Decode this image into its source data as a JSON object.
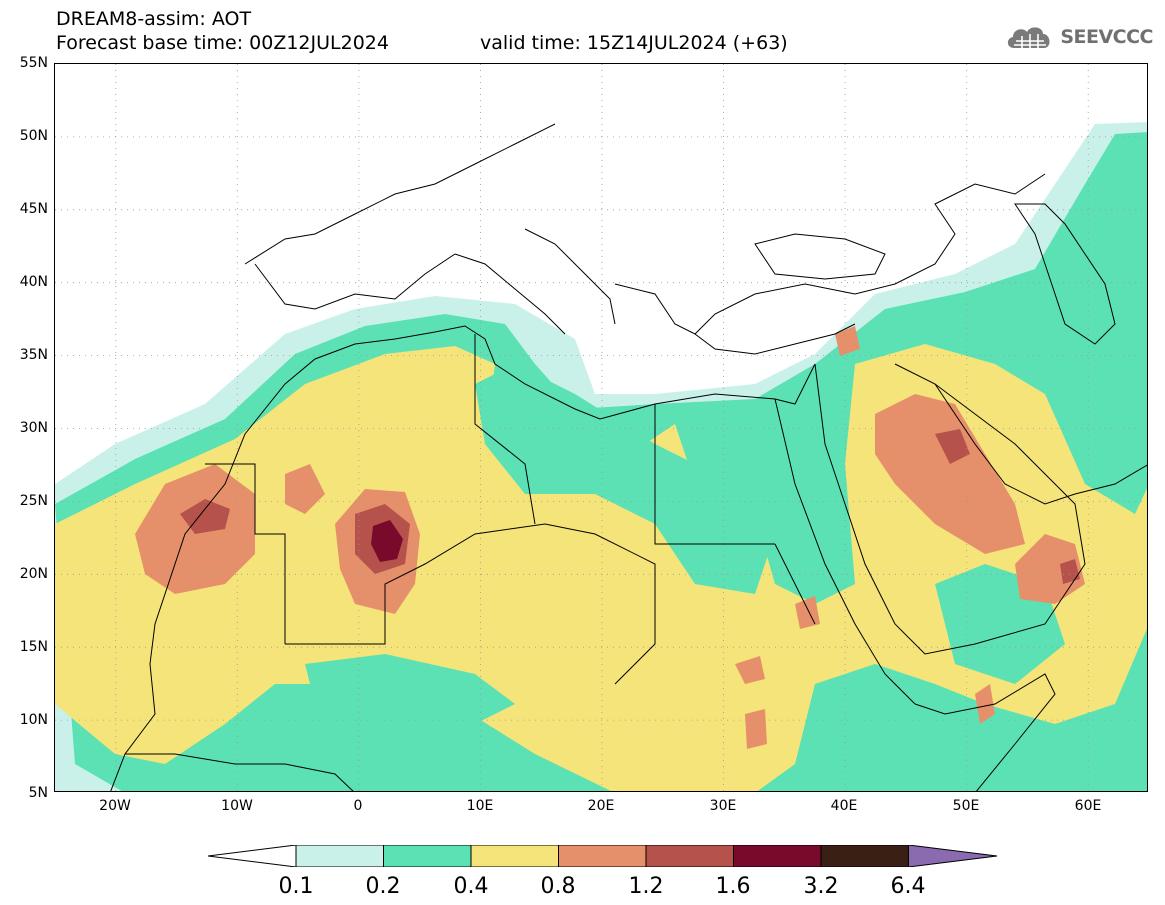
{
  "header": {
    "line1": "DREAM8-assim: AOT",
    "line2": "Forecast base time: 00Z12JUL2024",
    "valid": "valid time: 15Z14JUL2024 (+63)",
    "logo_text": "SEEVCCC",
    "logo_icon": "cloud-grid-icon"
  },
  "map": {
    "lat_labels": [
      "55N",
      "50N",
      "45N",
      "40N",
      "35N",
      "30N",
      "25N",
      "20N",
      "15N",
      "10N",
      "5N"
    ],
    "lon_labels": [
      "20W",
      "10W",
      "0",
      "10E",
      "20E",
      "30E",
      "40E",
      "50E",
      "60E"
    ],
    "lat_range": [
      5,
      55
    ],
    "lon_range": [
      -25,
      65
    ],
    "grid": true
  },
  "colorbar": {
    "levels": [
      "0.1",
      "0.2",
      "0.4",
      "0.8",
      "1.2",
      "1.6",
      "3.2",
      "6.4"
    ],
    "colors": {
      "below": "#ffffff",
      "c1": "#c9f1ea",
      "c2": "#5ce1b4",
      "c3": "#f5e47a",
      "c4": "#e6906b",
      "c5": "#b5524c",
      "c6": "#7a0a2b",
      "c7": "#3a2014",
      "above": "#8a6bb0"
    }
  }
}
